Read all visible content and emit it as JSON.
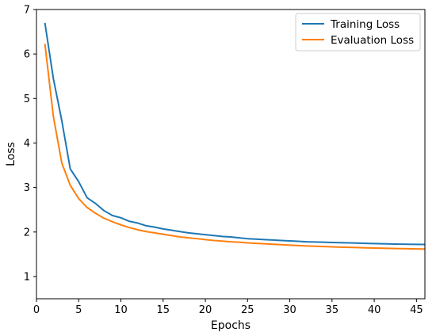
{
  "chart_data": {
    "type": "line",
    "title": "",
    "xlabel": "Epochs",
    "ylabel": "Loss",
    "xlim": [
      0,
      46
    ],
    "ylim": [
      0.5,
      7
    ],
    "xticks": [
      0,
      5,
      10,
      15,
      20,
      25,
      30,
      35,
      40,
      45
    ],
    "yticks": [
      1,
      2,
      3,
      4,
      5,
      6,
      7
    ],
    "grid": false,
    "legend": "top-right",
    "x": [
      1,
      2,
      3,
      4,
      5,
      6,
      7,
      8,
      9,
      10,
      11,
      12,
      13,
      14,
      15,
      16,
      17,
      18,
      19,
      20,
      21,
      22,
      23,
      24,
      25,
      26,
      27,
      28,
      29,
      30,
      31,
      32,
      33,
      34,
      35,
      36,
      37,
      38,
      39,
      40,
      41,
      42,
      43,
      44,
      45,
      46
    ],
    "series": [
      {
        "name": "Training Loss",
        "color": "#1f77b4",
        "values": [
          6.7,
          5.45,
          4.5,
          3.42,
          3.13,
          2.77,
          2.64,
          2.48,
          2.37,
          2.32,
          2.24,
          2.2,
          2.14,
          2.11,
          2.07,
          2.04,
          2.01,
          1.98,
          1.96,
          1.94,
          1.92,
          1.9,
          1.89,
          1.87,
          1.85,
          1.84,
          1.83,
          1.82,
          1.81,
          1.8,
          1.79,
          1.78,
          1.775,
          1.77,
          1.765,
          1.76,
          1.755,
          1.75,
          1.745,
          1.74,
          1.735,
          1.73,
          1.727,
          1.724,
          1.722,
          1.72
        ]
      },
      {
        "name": "Evaluation Loss",
        "color": "#ff7f0e",
        "values": [
          6.23,
          4.6,
          3.55,
          3.05,
          2.75,
          2.55,
          2.42,
          2.31,
          2.23,
          2.16,
          2.1,
          2.05,
          2.01,
          1.98,
          1.95,
          1.92,
          1.89,
          1.87,
          1.85,
          1.83,
          1.81,
          1.795,
          1.78,
          1.77,
          1.755,
          1.745,
          1.735,
          1.725,
          1.715,
          1.705,
          1.695,
          1.687,
          1.68,
          1.673,
          1.667,
          1.66,
          1.655,
          1.65,
          1.645,
          1.64,
          1.635,
          1.63,
          1.627,
          1.624,
          1.62,
          1.618
        ]
      }
    ]
  }
}
